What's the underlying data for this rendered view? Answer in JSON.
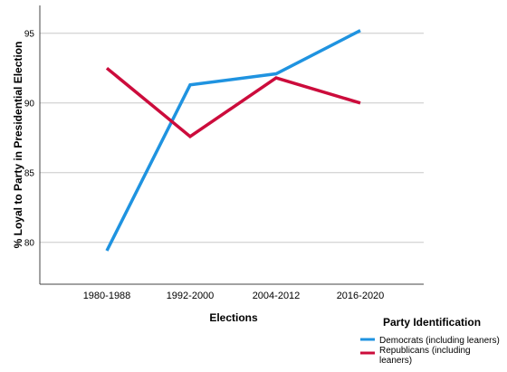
{
  "chart_data": {
    "type": "line",
    "title": "",
    "xlabel": "Elections",
    "ylabel": "% Loyal to Party in Presidential Election",
    "categories": [
      "1980-1988",
      "1992-2000",
      "2004-2012",
      "2016-2020"
    ],
    "ylim": [
      77,
      97
    ],
    "yticks": [
      80,
      85,
      90,
      95
    ],
    "grid": true,
    "legend": {
      "title": "Party Identification",
      "placement": "bottom-right"
    },
    "series": [
      {
        "name": "Democrats (including leaners)",
        "color": "#1f93e0",
        "values": [
          79.4,
          91.3,
          92.1,
          95.2
        ]
      },
      {
        "name": "Republicans (including leaners)",
        "color": "#cc0c3c",
        "values": [
          92.5,
          87.6,
          91.8,
          90.0
        ]
      }
    ]
  }
}
